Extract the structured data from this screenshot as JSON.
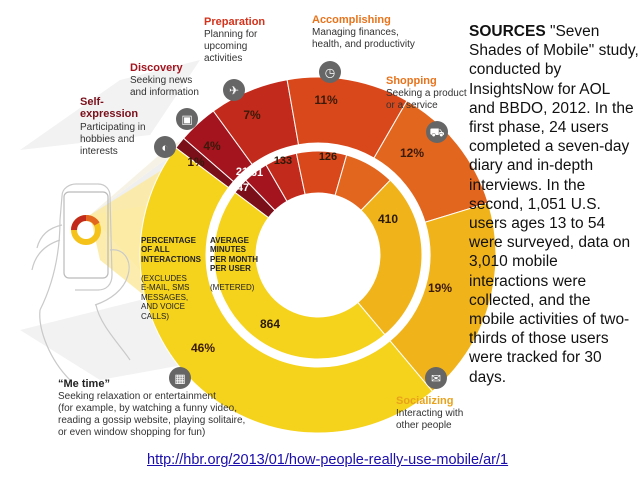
{
  "colors": {
    "self_expression": "#7a0f1a",
    "discovery": "#a3141f",
    "preparation": "#c22a1b",
    "accomplishing": "#d9481b",
    "shopping": "#e2661e",
    "socializing": "#f0b31a",
    "me_time": "#f5d21c",
    "title_red": "#d4321b",
    "title_orange": "#e8731b",
    "link": "#1a0dab"
  },
  "segments": [
    {
      "key": "self_expression",
      "title": "Self-\nexpression",
      "desc": "Participating in\nhobbies and\ninterests",
      "pct": "1%",
      "minutes": "21",
      "icon": "palette-icon"
    },
    {
      "key": "discovery",
      "title": "Discovery",
      "desc": "Seeking news\nand information",
      "pct": "4%",
      "minutes": "47",
      "icon": "camera-icon"
    },
    {
      "key": "preparation",
      "title": "Preparation",
      "desc": "Planning for\nupcoming\nactivities",
      "pct": "7%",
      "minutes": "61",
      "icon": "airplane-icon"
    },
    {
      "key": "accomplishing",
      "title": "Accomplishing",
      "desc": "Managing finances,\nhealth, and productivity",
      "pct": "11%",
      "minutes": "133",
      "icon": "stopwatch-icon"
    },
    {
      "key": "shopping",
      "title": "Shopping",
      "desc": "Seeking a product\nor a service",
      "pct": "12%",
      "minutes": "126",
      "icon": "cart-icon"
    },
    {
      "key": "socializing",
      "title": "Socializing",
      "desc": "Interacting with\nother people",
      "pct": "19%",
      "minutes": "410",
      "icon": "chat-icon"
    },
    {
      "key": "me_time",
      "title": "“Me time”",
      "desc": "Seeking relaxation or entertainment\n(for example, by watching a funny video,\nreading a gossip website, playing solitaire,\nor even window shopping for fun)",
      "pct": "46%",
      "minutes": "864",
      "icon": "film-icon"
    }
  ],
  "center": {
    "pct_label": "PERCENTAGE\nOF ALL\nINTERACTIONS",
    "pct_sub": "(EXCLUDES\nE-MAIL, SMS\nMESSAGES,\nAND VOICE\nCALLS)",
    "min_label": "AVERAGE\nMINUTES\nPER MONTH\nPER USER",
    "min_sub": "(METERED)"
  },
  "sources": {
    "heading": "SOURCES",
    "text": "\"Seven Shades of Mobile\" study, conducted by InsightsNow for AOL and BBDO, 2012. In the first phase, 24 users completed a seven-day diary and in-depth interviews. In the second, 1,051 U.S. users ages 13 to 54 were surveyed, data on 3,010 mobile interactions were collected, and the mobile activities of two-thirds of those users were tracked for 30 days."
  },
  "link": "http://hbr.org/2013/01/how-people-really-use-mobile/ar/1 "
}
